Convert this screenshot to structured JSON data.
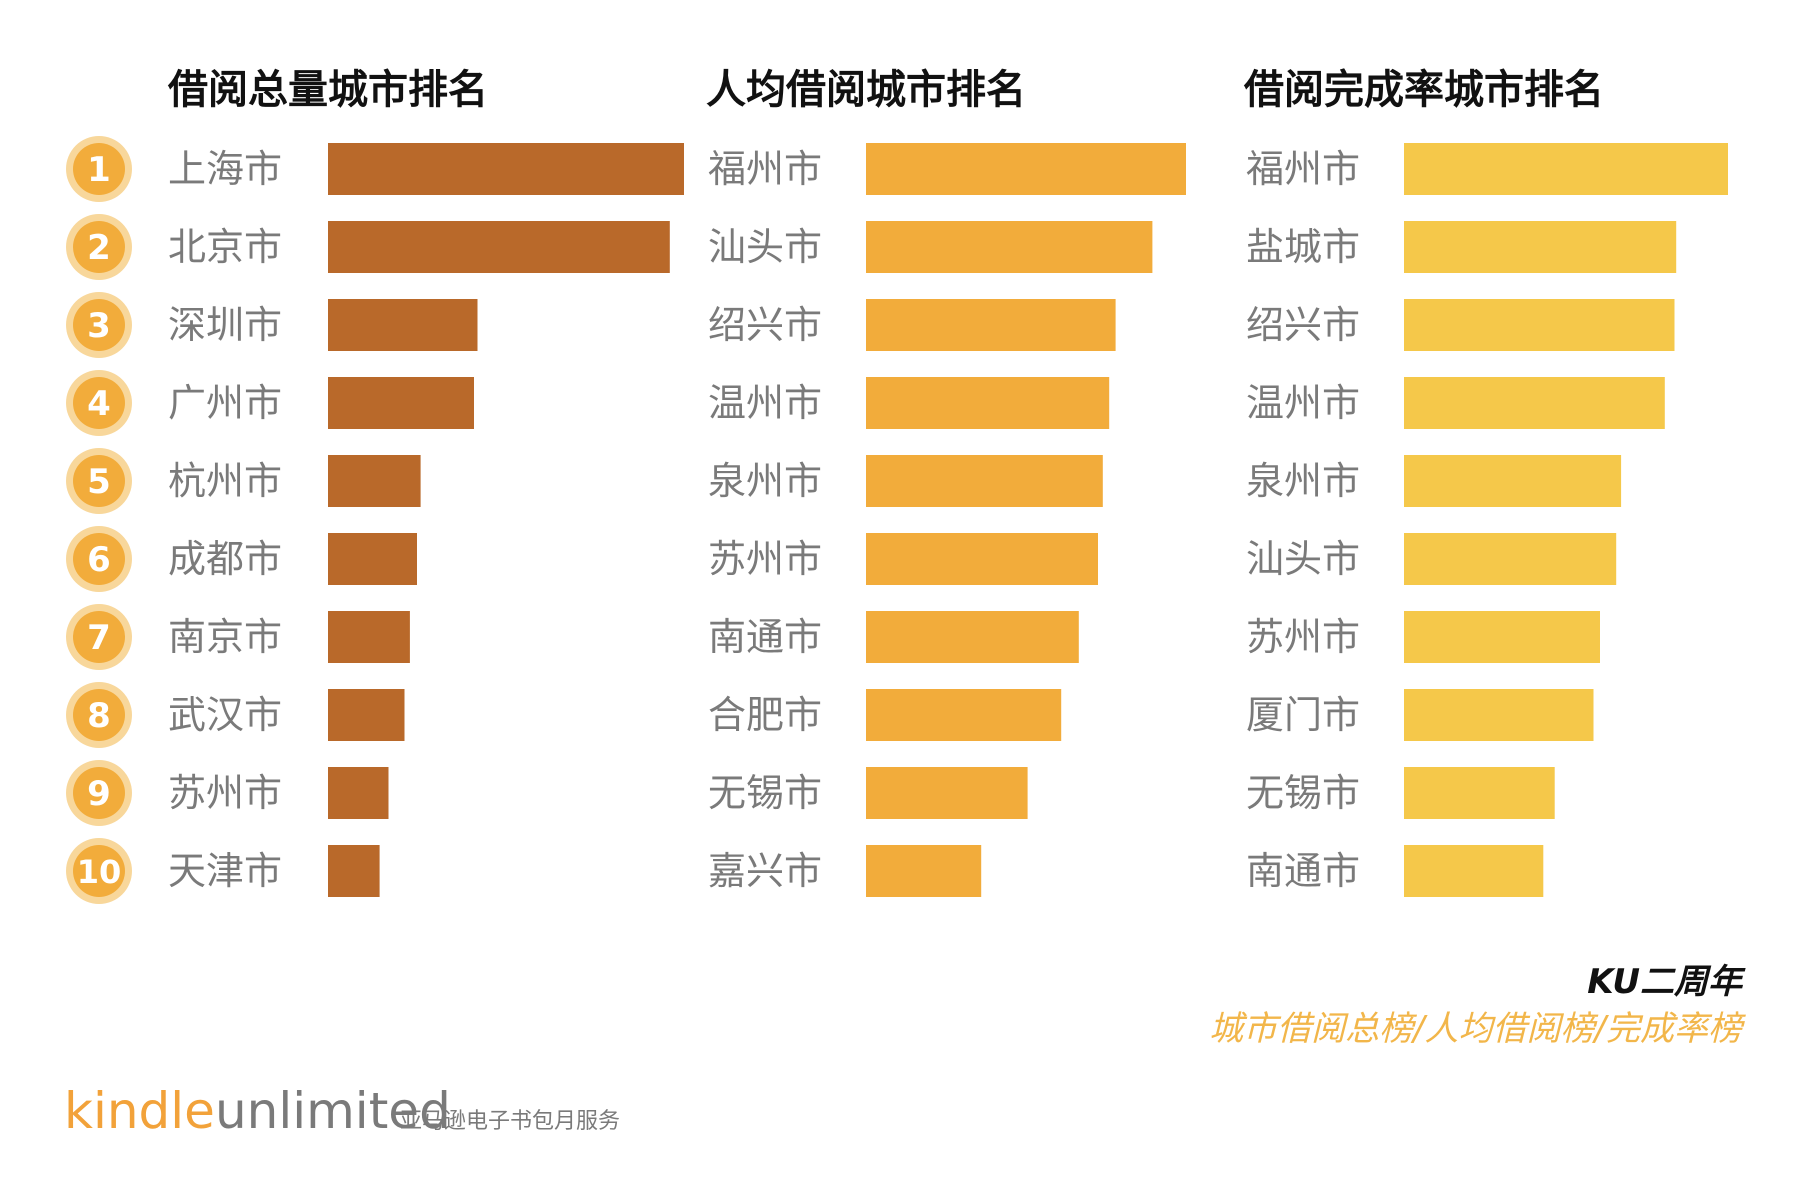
{
  "colors": {
    "total_bar": "#b9692a",
    "per_capita_bar": "#f2ac3b",
    "completion_bar": "#f5c84a",
    "rank_badge": "#f2ac3b",
    "rank_badge_ring": "#f8d79b",
    "footer_sub": "#f2b64a"
  },
  "rank_labels": [
    "1",
    "2",
    "3",
    "4",
    "5",
    "6",
    "7",
    "8",
    "9",
    "10"
  ],
  "chart_data": [
    {
      "type": "bar",
      "orientation": "horizontal",
      "title": "借阅总量城市排名",
      "categories": [
        "上海市",
        "北京市",
        "深圳市",
        "广州市",
        "杭州市",
        "成都市",
        "南京市",
        "武汉市",
        "苏州市",
        "天津市"
      ],
      "values": [
        100,
        96,
        42,
        41,
        26,
        25,
        23,
        21.5,
        17,
        14.5
      ],
      "color_key": "total_bar"
    },
    {
      "type": "bar",
      "orientation": "horizontal",
      "title": "人均借阅城市排名",
      "categories": [
        "福州市",
        "汕头市",
        "绍兴市",
        "温州市",
        "泉州市",
        "苏州市",
        "南通市",
        "合肥市",
        "无锡市",
        "嘉兴市"
      ],
      "values": [
        100,
        89.5,
        78,
        76,
        74,
        72.5,
        66.5,
        61,
        50.5,
        36
      ],
      "color_key": "per_capita_bar"
    },
    {
      "type": "bar",
      "orientation": "horizontal",
      "title": "借阅完成率城市排名",
      "categories": [
        "福州市",
        "盐城市",
        "绍兴市",
        "温州市",
        "泉州市",
        "汕头市",
        "苏州市",
        "厦门市",
        "无锡市",
        "南通市"
      ],
      "values": [
        100,
        84,
        83.5,
        80.5,
        67,
        65.5,
        60.5,
        58.5,
        46.5,
        43
      ],
      "color_key": "completion_bar"
    }
  ],
  "footer": {
    "title": "KU二周年",
    "subtitle": "城市借阅总榜/人均借阅榜/完成率榜"
  },
  "brand": {
    "kindle": "kindle",
    "unlimited": "unlimited",
    "tagline": "亚马逊电子书包月服务"
  }
}
